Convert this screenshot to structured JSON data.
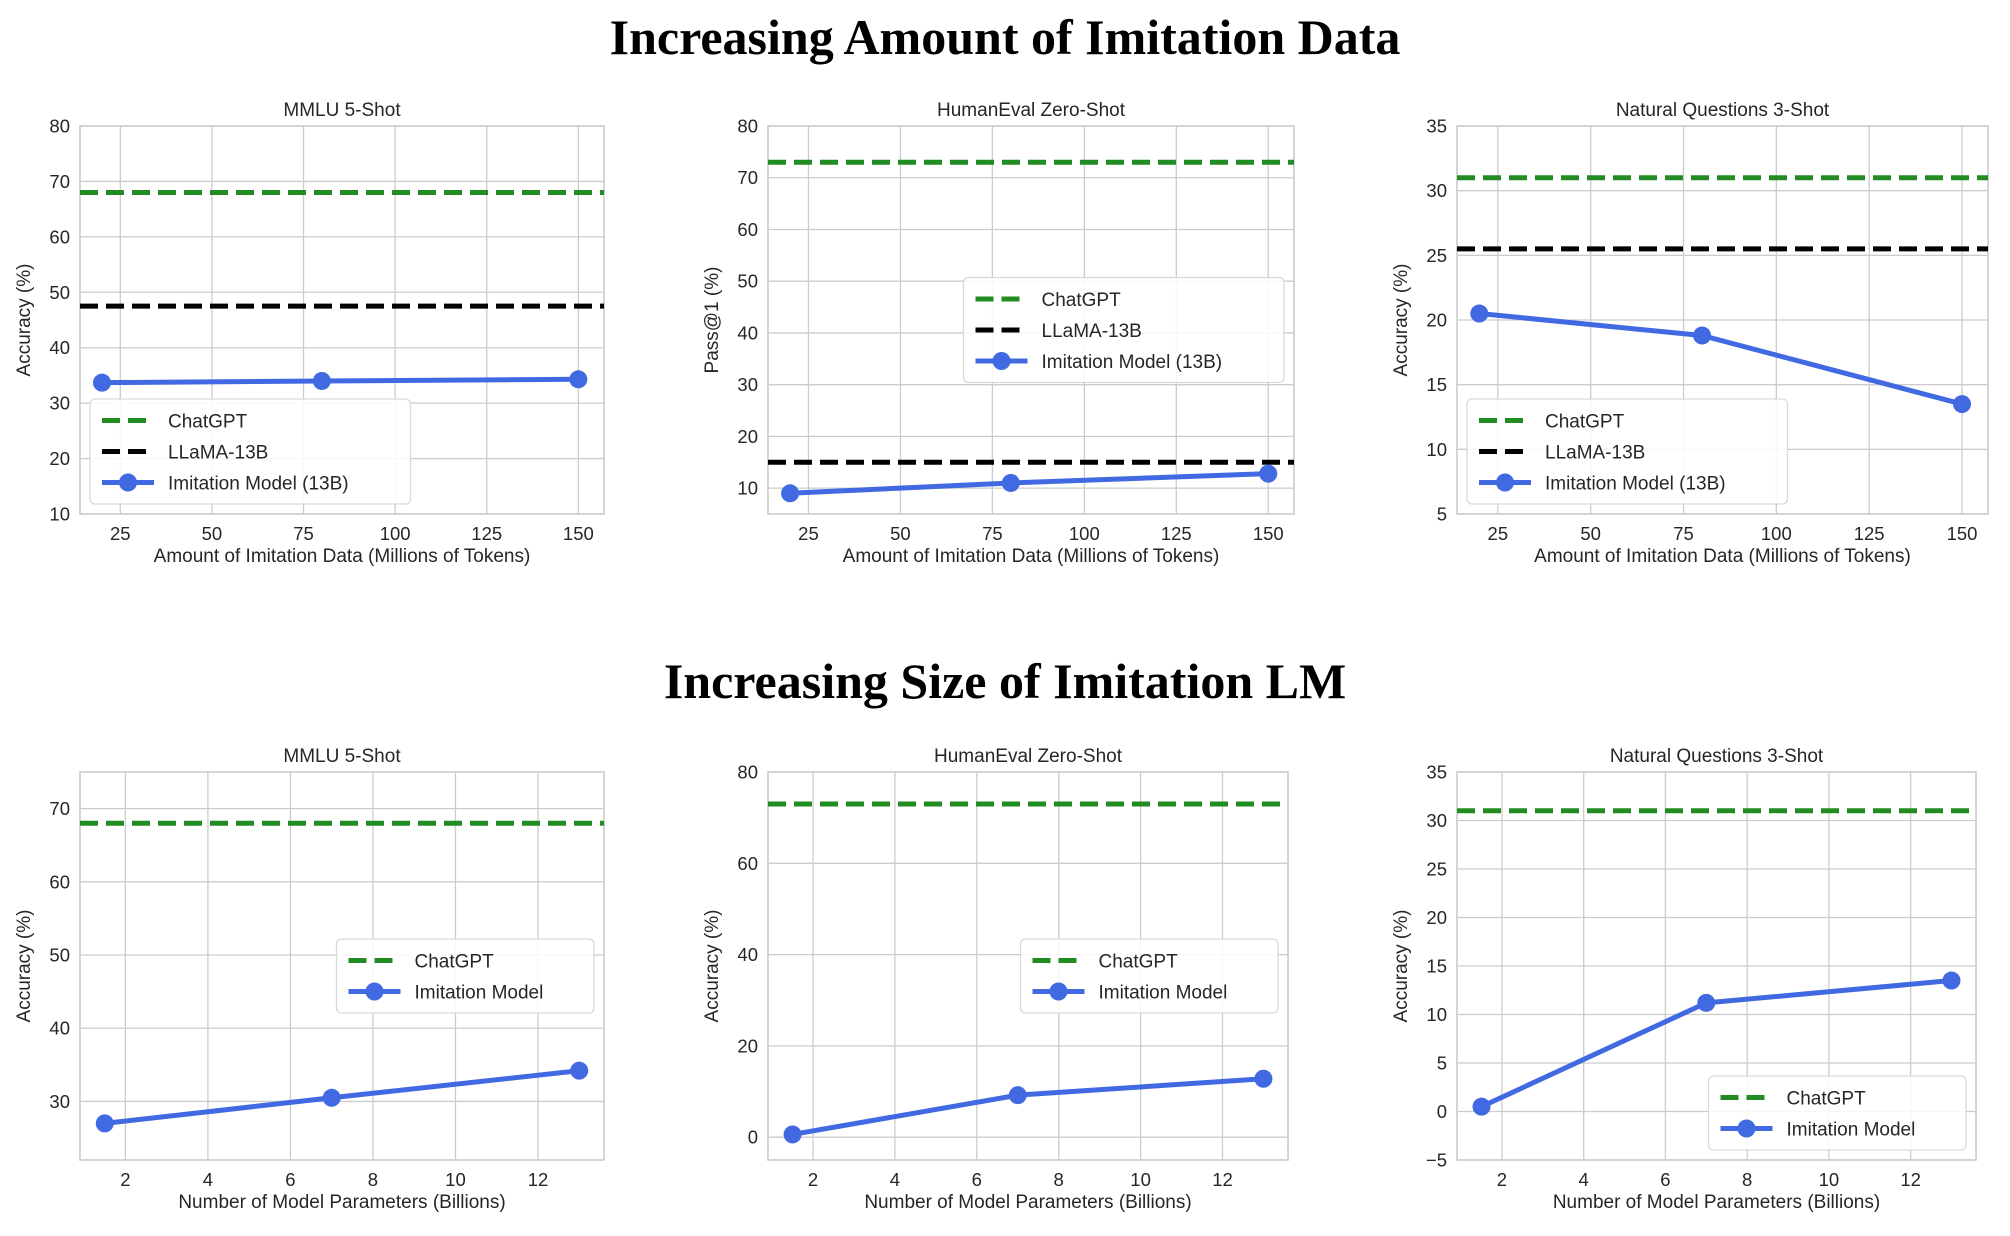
{
  "row_titles": {
    "top": "Increasing Amount of Imitation Data",
    "bottom": "Increasing Size of Imitation LM"
  },
  "colors": {
    "chatgpt": "#228b22",
    "llama": "#000000",
    "imitation": "#4169e1",
    "grid": "#cccccc"
  },
  "chart_data": [
    {
      "type": "line",
      "title": "MMLU 5-Shot",
      "xlabel": "Amount of Imitation Data (Millions of Tokens)",
      "ylabel": "Accuracy (%)",
      "xlim": [
        14,
        157
      ],
      "ylim": [
        10,
        80
      ],
      "xticks": [
        25,
        50,
        75,
        100,
        125,
        150
      ],
      "yticks": [
        10,
        20,
        30,
        40,
        50,
        60,
        70,
        80
      ],
      "legend_position": "lower-left",
      "series": [
        {
          "name": "ChatGPT",
          "kind": "hline",
          "style": "dashed",
          "color": "#228b22",
          "y": 68
        },
        {
          "name": "LLaMA-13B",
          "kind": "hline",
          "style": "dashed",
          "color": "#000000",
          "y": 47.5
        },
        {
          "name": "Imitation Model (13B)",
          "kind": "line",
          "color": "#4169e1",
          "x": [
            20,
            80,
            150
          ],
          "y": [
            33.7,
            34,
            34.3
          ]
        }
      ]
    },
    {
      "type": "line",
      "title": "HumanEval Zero-Shot",
      "xlabel": "Amount of Imitation Data (Millions of Tokens)",
      "ylabel": "Pass@1 (%)",
      "xlim": [
        14,
        157
      ],
      "ylim": [
        5,
        80
      ],
      "xticks": [
        25,
        50,
        75,
        100,
        125,
        150
      ],
      "yticks": [
        10,
        20,
        30,
        40,
        50,
        60,
        70,
        80
      ],
      "legend_position": "center-right",
      "series": [
        {
          "name": "ChatGPT",
          "kind": "hline",
          "style": "dashed",
          "color": "#228b22",
          "y": 73
        },
        {
          "name": "LLaMA-13B",
          "kind": "hline",
          "style": "dashed",
          "color": "#000000",
          "y": 15
        },
        {
          "name": "Imitation Model (13B)",
          "kind": "line",
          "color": "#4169e1",
          "x": [
            20,
            80,
            150
          ],
          "y": [
            9,
            11,
            12.8
          ]
        }
      ]
    },
    {
      "type": "line",
      "title": "Natural Questions 3-Shot",
      "xlabel": "Amount of Imitation Data (Millions of Tokens)",
      "ylabel": "Accuracy (%)",
      "xlim": [
        14,
        157
      ],
      "ylim": [
        5,
        35
      ],
      "xticks": [
        25,
        50,
        75,
        100,
        125,
        150
      ],
      "yticks": [
        5,
        10,
        15,
        20,
        25,
        30,
        35
      ],
      "legend_position": "lower-left",
      "series": [
        {
          "name": "ChatGPT",
          "kind": "hline",
          "style": "dashed",
          "color": "#228b22",
          "y": 31
        },
        {
          "name": "LLaMA-13B",
          "kind": "hline",
          "style": "dashed",
          "color": "#000000",
          "y": 25.5
        },
        {
          "name": "Imitation Model (13B)",
          "kind": "line",
          "color": "#4169e1",
          "x": [
            20,
            80,
            150
          ],
          "y": [
            20.5,
            18.8,
            13.5
          ]
        }
      ]
    },
    {
      "type": "line",
      "title": "MMLU 5-Shot",
      "xlabel": "Number of Model Parameters (Billions)",
      "ylabel": "Accuracy (%)",
      "xlim": [
        0.9,
        13.6
      ],
      "ylim": [
        22,
        75
      ],
      "xticks": [
        2,
        4,
        6,
        8,
        10,
        12
      ],
      "yticks": [
        30,
        40,
        50,
        60,
        70
      ],
      "legend_position": "center-right",
      "series": [
        {
          "name": "ChatGPT",
          "kind": "hline",
          "style": "dashed",
          "color": "#228b22",
          "y": 68
        },
        {
          "name": "Imitation Model",
          "kind": "line",
          "color": "#4169e1",
          "x": [
            1.5,
            7,
            13
          ],
          "y": [
            27,
            30.5,
            34.2
          ]
        }
      ]
    },
    {
      "type": "line",
      "title": "HumanEval Zero-Shot",
      "xlabel": "Number of Model Parameters (Billions)",
      "ylabel": "Accuracy (%)",
      "xlim": [
        0.9,
        13.6
      ],
      "ylim": [
        -5,
        80
      ],
      "xticks": [
        2,
        4,
        6,
        8,
        10,
        12
      ],
      "yticks": [
        0,
        20,
        40,
        60,
        80
      ],
      "legend_position": "center-right",
      "series": [
        {
          "name": "ChatGPT",
          "kind": "hline",
          "style": "dashed",
          "color": "#228b22",
          "y": 73
        },
        {
          "name": "Imitation Model",
          "kind": "line",
          "color": "#4169e1",
          "x": [
            1.5,
            7,
            13
          ],
          "y": [
            0.6,
            9.2,
            12.8
          ]
        }
      ]
    },
    {
      "type": "line",
      "title": "Natural Questions 3-Shot",
      "xlabel": "Number of Model Parameters (Billions)",
      "ylabel": "Accuracy (%)",
      "xlim": [
        0.9,
        13.6
      ],
      "ylim": [
        -5,
        35
      ],
      "xticks": [
        2,
        4,
        6,
        8,
        10,
        12
      ],
      "yticks": [
        -5,
        0,
        5,
        10,
        15,
        20,
        25,
        30,
        35
      ],
      "legend_position": "lower-right",
      "series": [
        {
          "name": "ChatGPT",
          "kind": "hline",
          "style": "dashed",
          "color": "#228b22",
          "y": 31
        },
        {
          "name": "Imitation Model",
          "kind": "line",
          "color": "#4169e1",
          "x": [
            1.5,
            7,
            13
          ],
          "y": [
            0.5,
            11.2,
            13.5
          ]
        }
      ]
    }
  ]
}
